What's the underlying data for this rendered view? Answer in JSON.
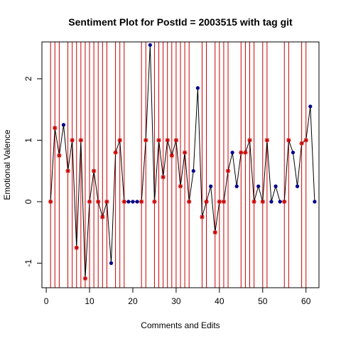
{
  "chart_data": {
    "type": "scatter",
    "title": "Sentiment Plot for PostId =  2003515  with tag  git",
    "xlabel": "Comments and Edits",
    "ylabel": "Emotional Valence",
    "xlim": [
      -1,
      63
    ],
    "ylim": [
      -1.4,
      2.6
    ],
    "xticks": [
      0,
      10,
      20,
      30,
      40,
      50,
      60
    ],
    "yticks": [
      -1,
      0,
      1,
      2
    ],
    "xtick_labels": [
      "0",
      "10",
      "20",
      "30",
      "40",
      "50",
      "60"
    ],
    "ytick_labels": [
      "-1",
      "0",
      "1",
      "2"
    ],
    "grid": false,
    "line_color": "#000000",
    "edit_line_color": "#cc0000",
    "comment_point_color": "#00008b",
    "edit_point_color": "#cc0000",
    "edit_positions": [
      1,
      2,
      3,
      5,
      6,
      7,
      8,
      9,
      10,
      11,
      12,
      13,
      14,
      16,
      17,
      18,
      22,
      23,
      25,
      26,
      27,
      28,
      29,
      30,
      31,
      32,
      33,
      36,
      37,
      39,
      40,
      41,
      42,
      45,
      46,
      47,
      48,
      50,
      51,
      55,
      56,
      59,
      60
    ],
    "points": [
      {
        "x": 1,
        "y": 0,
        "kind": "edit"
      },
      {
        "x": 2,
        "y": 1.2,
        "kind": "edit"
      },
      {
        "x": 3,
        "y": 0.75,
        "kind": "edit"
      },
      {
        "x": 4,
        "y": 1.25,
        "kind": "comment"
      },
      {
        "x": 5,
        "y": 0.5,
        "kind": "edit"
      },
      {
        "x": 6,
        "y": 1.0,
        "kind": "edit"
      },
      {
        "x": 7,
        "y": -0.75,
        "kind": "edit"
      },
      {
        "x": 8,
        "y": 1.0,
        "kind": "edit"
      },
      {
        "x": 9,
        "y": -1.25,
        "kind": "edit"
      },
      {
        "x": 10,
        "y": 0,
        "kind": "edit"
      },
      {
        "x": 11,
        "y": 0.5,
        "kind": "edit"
      },
      {
        "x": 12,
        "y": 0,
        "kind": "edit"
      },
      {
        "x": 13,
        "y": -0.25,
        "kind": "edit"
      },
      {
        "x": 14,
        "y": 0,
        "kind": "edit"
      },
      {
        "x": 15,
        "y": -1.0,
        "kind": "comment"
      },
      {
        "x": 16,
        "y": 0.8,
        "kind": "edit"
      },
      {
        "x": 17,
        "y": 1.0,
        "kind": "edit"
      },
      {
        "x": 18,
        "y": 0,
        "kind": "edit"
      },
      {
        "x": 19,
        "y": 0,
        "kind": "comment"
      },
      {
        "x": 20,
        "y": 0,
        "kind": "comment"
      },
      {
        "x": 21,
        "y": 0,
        "kind": "comment"
      },
      {
        "x": 22,
        "y": 0,
        "kind": "edit"
      },
      {
        "x": 23,
        "y": 1.0,
        "kind": "edit"
      },
      {
        "x": 24,
        "y": 2.55,
        "kind": "comment"
      },
      {
        "x": 25,
        "y": 0,
        "kind": "edit"
      },
      {
        "x": 26,
        "y": 1.0,
        "kind": "edit"
      },
      {
        "x": 27,
        "y": 0.4,
        "kind": "edit"
      },
      {
        "x": 28,
        "y": 1.0,
        "kind": "edit"
      },
      {
        "x": 29,
        "y": 0.75,
        "kind": "edit"
      },
      {
        "x": 30,
        "y": 1.0,
        "kind": "edit"
      },
      {
        "x": 31,
        "y": 0.25,
        "kind": "edit"
      },
      {
        "x": 32,
        "y": 0.8,
        "kind": "edit"
      },
      {
        "x": 33,
        "y": 0,
        "kind": "edit"
      },
      {
        "x": 34,
        "y": 0.5,
        "kind": "comment"
      },
      {
        "x": 35,
        "y": 1.85,
        "kind": "comment"
      },
      {
        "x": 36,
        "y": -0.25,
        "kind": "edit"
      },
      {
        "x": 37,
        "y": 0,
        "kind": "edit"
      },
      {
        "x": 38,
        "y": 0.25,
        "kind": "comment"
      },
      {
        "x": 39,
        "y": -0.5,
        "kind": "edit"
      },
      {
        "x": 40,
        "y": 0,
        "kind": "edit"
      },
      {
        "x": 41,
        "y": 0,
        "kind": "edit"
      },
      {
        "x": 42,
        "y": 0.5,
        "kind": "edit"
      },
      {
        "x": 43,
        "y": 0.8,
        "kind": "comment"
      },
      {
        "x": 44,
        "y": 0.25,
        "kind": "comment"
      },
      {
        "x": 45,
        "y": 0.8,
        "kind": "edit"
      },
      {
        "x": 46,
        "y": 0.8,
        "kind": "edit"
      },
      {
        "x": 47,
        "y": 1.0,
        "kind": "edit"
      },
      {
        "x": 48,
        "y": 0,
        "kind": "edit"
      },
      {
        "x": 49,
        "y": 0.25,
        "kind": "comment"
      },
      {
        "x": 50,
        "y": 0,
        "kind": "edit"
      },
      {
        "x": 51,
        "y": 1.0,
        "kind": "edit"
      },
      {
        "x": 52,
        "y": 0,
        "kind": "comment"
      },
      {
        "x": 53,
        "y": 0.25,
        "kind": "comment"
      },
      {
        "x": 54,
        "y": 0,
        "kind": "comment"
      },
      {
        "x": 55,
        "y": 0,
        "kind": "edit"
      },
      {
        "x": 56,
        "y": 1.0,
        "kind": "edit"
      },
      {
        "x": 57,
        "y": 0.8,
        "kind": "comment"
      },
      {
        "x": 58,
        "y": 0.25,
        "kind": "comment"
      },
      {
        "x": 59,
        "y": 0.95,
        "kind": "edit"
      },
      {
        "x": 60,
        "y": 1.0,
        "kind": "edit"
      },
      {
        "x": 61,
        "y": 1.55,
        "kind": "comment"
      },
      {
        "x": 62,
        "y": 0,
        "kind": "comment"
      }
    ]
  }
}
